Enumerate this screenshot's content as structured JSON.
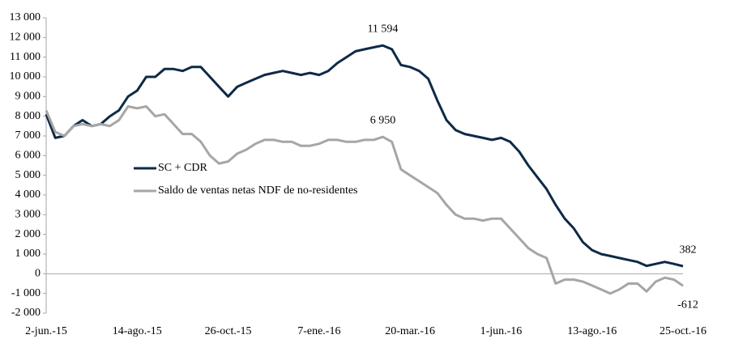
{
  "chart_data": {
    "type": "line",
    "categories": [
      "2-jun.-15",
      null,
      null,
      null,
      null,
      null,
      null,
      null,
      null,
      null,
      "14-ago.-15",
      null,
      null,
      null,
      null,
      null,
      null,
      null,
      null,
      null,
      "26-oct.-15",
      null,
      null,
      null,
      null,
      null,
      null,
      null,
      null,
      null,
      "7-ene.-16",
      null,
      null,
      null,
      null,
      null,
      null,
      null,
      null,
      null,
      "20-mar.-16",
      null,
      null,
      null,
      null,
      null,
      null,
      null,
      null,
      null,
      "1-jun.-16",
      null,
      null,
      null,
      null,
      null,
      null,
      null,
      null,
      null,
      "13-ago.-16",
      null,
      null,
      null,
      null,
      null,
      null,
      null,
      null,
      null,
      "25-oct.-16"
    ],
    "series": [
      {
        "name": "SC + CDR",
        "color": "#0e2a47",
        "values": [
          8100,
          6900,
          7000,
          7500,
          7800,
          7500,
          7600,
          8000,
          8300,
          9000,
          9300,
          10000,
          10000,
          10400,
          10400,
          10300,
          10500,
          10500,
          10000,
          9500,
          9000,
          9500,
          9700,
          9900,
          10100,
          10200,
          10300,
          10200,
          10100,
          10200,
          10100,
          10300,
          10700,
          11000,
          11300,
          11400,
          11500,
          11594,
          11400,
          10600,
          10500,
          10300,
          9900,
          8800,
          7800,
          7300,
          7100,
          7000,
          6900,
          6800,
          6900,
          6700,
          6200,
          5500,
          4900,
          4300,
          3500,
          2800,
          2300,
          1600,
          1200,
          1000,
          900,
          800,
          700,
          600,
          400,
          500,
          600,
          500,
          382
        ],
        "value_labels": [
          null,
          null,
          null,
          null,
          null,
          null,
          null,
          null,
          null,
          null,
          null,
          null,
          null,
          null,
          null,
          null,
          null,
          null,
          null,
          null,
          null,
          null,
          null,
          null,
          null,
          null,
          null,
          null,
          null,
          null,
          null,
          null,
          null,
          null,
          null,
          null,
          null,
          "11 594",
          null,
          null,
          null,
          null,
          null,
          null,
          null,
          null,
          null,
          null,
          null,
          null,
          null,
          null,
          null,
          null,
          null,
          null,
          null,
          null,
          null,
          null,
          null,
          null,
          null,
          null,
          null,
          null,
          null,
          null,
          null,
          null,
          "382"
        ]
      },
      {
        "name": "Saldo de ventas netas NDF de no-residentes",
        "color": "#a6a6a6",
        "values": [
          8300,
          7200,
          7000,
          7500,
          7600,
          7500,
          7600,
          7500,
          7800,
          8500,
          8400,
          8500,
          8000,
          8100,
          7600,
          7100,
          7100,
          6700,
          6000,
          5600,
          5700,
          6100,
          6300,
          6600,
          6800,
          6800,
          6700,
          6700,
          6500,
          6500,
          6600,
          6800,
          6800,
          6700,
          6700,
          6800,
          6800,
          6950,
          6700,
          5300,
          5000,
          4700,
          4400,
          4100,
          3500,
          3000,
          2800,
          2800,
          2700,
          2800,
          2800,
          2300,
          1800,
          1300,
          1000,
          800,
          -500,
          -300,
          -300,
          -400,
          -600,
          -800,
          -1000,
          -800,
          -500,
          -500,
          -900,
          -400,
          -200,
          -300,
          -612
        ],
        "value_labels": [
          null,
          null,
          null,
          null,
          null,
          null,
          null,
          null,
          null,
          null,
          null,
          null,
          null,
          null,
          null,
          null,
          null,
          null,
          null,
          null,
          null,
          null,
          null,
          null,
          null,
          null,
          null,
          null,
          null,
          null,
          null,
          null,
          null,
          null,
          null,
          null,
          null,
          "6 950",
          null,
          null,
          null,
          null,
          null,
          null,
          null,
          null,
          null,
          null,
          null,
          null,
          null,
          null,
          null,
          null,
          null,
          null,
          null,
          null,
          null,
          null,
          null,
          null,
          null,
          null,
          null,
          null,
          null,
          null,
          null,
          null,
          "-612"
        ]
      }
    ],
    "ylim": [
      -2000,
      13000
    ],
    "yticks": [
      {
        "value": -2000,
        "label": "-2 000"
      },
      {
        "value": -1000,
        "label": "-1 000"
      },
      0,
      {
        "value": 1000,
        "label": "1 000"
      },
      {
        "value": 2000,
        "label": "2 000"
      },
      {
        "value": 3000,
        "label": "3 000"
      },
      {
        "value": 4000,
        "label": "4 000"
      },
      {
        "value": 5000,
        "label": "5 000"
      },
      {
        "value": 6000,
        "label": "6 000"
      },
      {
        "value": 7000,
        "label": "7 000"
      },
      {
        "value": 8000,
        "label": "8 000"
      },
      {
        "value": 9000,
        "label": "9 000"
      },
      {
        "value": 10000,
        "label": "10 000"
      },
      {
        "value": 11000,
        "label": "11 000"
      },
      {
        "value": 12000,
        "label": "12 000"
      },
      {
        "value": 13000,
        "label": "13 000"
      }
    ],
    "grid": false,
    "legend": "left"
  }
}
